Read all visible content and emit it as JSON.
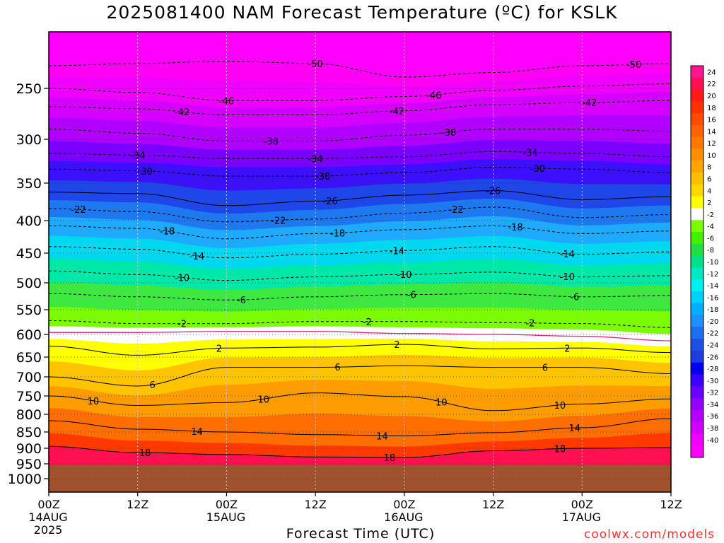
{
  "chart_data": {
    "type": "heatmap",
    "title": "2025081400 NAM Forecast Temperature (ºC) for KSLK",
    "xlabel": "Forecast Time (UTC)",
    "ylabel": "",
    "credit": "coolwx.com/models",
    "x_hours": [
      0,
      12,
      24,
      36,
      48,
      60,
      72,
      84
    ],
    "x_ticks": [
      {
        "hour": 0,
        "lines": [
          "00Z",
          "14AUG",
          "2025"
        ]
      },
      {
        "hour": 12,
        "lines": [
          "12Z"
        ]
      },
      {
        "hour": 24,
        "lines": [
          "00Z",
          "15AUG"
        ]
      },
      {
        "hour": 36,
        "lines": [
          "12Z"
        ]
      },
      {
        "hour": 48,
        "lines": [
          "00Z",
          "16AUG"
        ]
      },
      {
        "hour": 60,
        "lines": [
          "12Z"
        ]
      },
      {
        "hour": 72,
        "lines": [
          "00Z",
          "17AUG"
        ]
      },
      {
        "hour": 84,
        "lines": [
          "12Z"
        ]
      }
    ],
    "y_ticks": [
      250,
      300,
      350,
      400,
      450,
      500,
      550,
      600,
      650,
      700,
      750,
      800,
      850,
      900,
      950,
      1000
    ],
    "ylim": [
      200,
      1040
    ],
    "xlim": [
      0,
      84
    ],
    "ground_pressure": 955,
    "ground_color": "#a0522d",
    "isotherms": [
      {
        "temp": -50,
        "p": [
          230,
          228,
          226,
          228,
          240,
          236,
          230,
          228
        ],
        "dashed": true,
        "labels": [
          {
            "hour": 36,
            "text": "-50"
          },
          {
            "hour": 79,
            "text": "-50"
          }
        ]
      },
      {
        "temp": -46,
        "p": [
          250,
          254,
          262,
          262,
          258,
          252,
          248,
          246
        ],
        "dashed": true,
        "labels": [
          {
            "hour": 24,
            "text": "-46"
          },
          {
            "hour": 52,
            "text": "-46"
          }
        ]
      },
      {
        "temp": -42,
        "p": [
          268,
          270,
          276,
          276,
          272,
          266,
          264,
          262
        ],
        "dashed": true,
        "labels": [
          {
            "hour": 18,
            "text": "-42"
          },
          {
            "hour": 47,
            "text": "-42"
          },
          {
            "hour": 73,
            "text": "-42"
          }
        ]
      },
      {
        "temp": -38,
        "p": [
          290,
          294,
          302,
          302,
          296,
          290,
          290,
          292
        ],
        "dashed": true,
        "labels": [
          {
            "hour": 30,
            "text": "-38"
          },
          {
            "hour": 54,
            "text": "-38"
          }
        ]
      },
      {
        "temp": -34,
        "p": [
          316,
          318,
          322,
          322,
          320,
          314,
          316,
          320
        ],
        "dashed": true,
        "labels": [
          {
            "hour": 12,
            "text": "-34"
          },
          {
            "hour": 36,
            "text": "-34"
          },
          {
            "hour": 65,
            "text": "-34"
          }
        ]
      },
      {
        "temp": -30,
        "p": [
          334,
          336,
          342,
          342,
          338,
          332,
          334,
          338
        ],
        "dashed": true,
        "labels": [
          {
            "hour": 13,
            "text": "-30"
          },
          {
            "hour": 37,
            "text": "-30"
          },
          {
            "hour": 66,
            "text": "-30"
          }
        ]
      },
      {
        "temp": -26,
        "p": [
          362,
          364,
          380,
          374,
          366,
          360,
          372,
          368
        ],
        "dashed": false,
        "labels": [
          {
            "hour": 38,
            "text": "-26"
          },
          {
            "hour": 60,
            "text": "-26"
          }
        ]
      },
      {
        "temp": -22,
        "p": [
          384,
          388,
          402,
          398,
          390,
          382,
          396,
          392
        ],
        "dashed": true,
        "labels": [
          {
            "hour": 4,
            "text": "-22"
          },
          {
            "hour": 31,
            "text": "-22"
          },
          {
            "hour": 55,
            "text": "-22"
          }
        ]
      },
      {
        "temp": -18,
        "p": [
          408,
          412,
          428,
          420,
          414,
          408,
          420,
          416
        ],
        "dashed": true,
        "labels": [
          {
            "hour": 16,
            "text": "-18"
          },
          {
            "hour": 39,
            "text": "-18"
          },
          {
            "hour": 63,
            "text": "-18"
          }
        ]
      },
      {
        "temp": -14,
        "p": [
          440,
          444,
          458,
          452,
          446,
          440,
          452,
          448
        ],
        "dashed": true,
        "labels": [
          {
            "hour": 20,
            "text": "-14"
          },
          {
            "hour": 47,
            "text": "-14"
          },
          {
            "hour": 70,
            "text": "-14"
          }
        ]
      },
      {
        "temp": -10,
        "p": [
          480,
          486,
          496,
          490,
          486,
          482,
          490,
          488
        ],
        "dashed": true,
        "labels": [
          {
            "hour": 18,
            "text": "-10"
          },
          {
            "hour": 48,
            "text": "-10"
          },
          {
            "hour": 70,
            "text": "-10"
          }
        ]
      },
      {
        "temp": -6,
        "p": [
          520,
          526,
          532,
          526,
          522,
          520,
          526,
          524
        ],
        "dashed": true,
        "labels": [
          {
            "hour": 26,
            "text": "-6"
          },
          {
            "hour": 49,
            "text": "-6"
          },
          {
            "hour": 71,
            "text": "-6"
          }
        ]
      },
      {
        "temp": -2,
        "p": [
          572,
          578,
          578,
          574,
          574,
          576,
          578,
          586
        ],
        "dashed": true,
        "labels": [
          {
            "hour": 18,
            "text": "-2"
          },
          {
            "hour": 43,
            "text": "-2"
          },
          {
            "hour": 65,
            "text": "-2"
          }
        ]
      },
      {
        "temp": 0,
        "p": [
          596,
          596,
          594,
          594,
          598,
          600,
          604,
          614
        ],
        "dashed": false,
        "freezing": true,
        "labels": []
      },
      {
        "temp": 2,
        "p": [
          626,
          646,
          630,
          628,
          622,
          632,
          630,
          640
        ],
        "dashed": false,
        "labels": [
          {
            "hour": 23,
            "text": "2"
          },
          {
            "hour": 47,
            "text": "2"
          },
          {
            "hour": 70,
            "text": "2"
          }
        ]
      },
      {
        "temp": 6,
        "p": [
          700,
          724,
          676,
          676,
          672,
          676,
          676,
          692
        ],
        "dashed": false,
        "labels": [
          {
            "hour": 14,
            "text": "6"
          },
          {
            "hour": 39,
            "text": "6"
          },
          {
            "hour": 67,
            "text": "6"
          }
        ]
      },
      {
        "temp": 10,
        "p": [
          750,
          776,
          768,
          742,
          752,
          790,
          772,
          758
        ],
        "dashed": false,
        "labels": [
          {
            "hour": 6,
            "text": "10"
          },
          {
            "hour": 29,
            "text": "10"
          },
          {
            "hour": 53,
            "text": "10"
          },
          {
            "hour": 69,
            "text": "10"
          }
        ]
      },
      {
        "temp": 14,
        "p": [
          818,
          842,
          850,
          858,
          862,
          852,
          838,
          812
        ],
        "dashed": false,
        "labels": [
          {
            "hour": 20,
            "text": "14"
          },
          {
            "hour": 45,
            "text": "14"
          },
          {
            "hour": 71,
            "text": "14"
          }
        ]
      },
      {
        "temp": 18,
        "p": [
          894,
          914,
          920,
          928,
          930,
          908,
          900,
          898
        ],
        "dashed": false,
        "labels": [
          {
            "hour": 13,
            "text": "18"
          },
          {
            "hour": 46,
            "text": "18"
          },
          {
            "hour": 69,
            "text": "18"
          }
        ]
      }
    ],
    "colorbar": {
      "labels": [
        "24",
        "22",
        "20",
        "18",
        "16",
        "14",
        "12",
        "10",
        "8",
        "6",
        "4",
        "2",
        "-2",
        "-4",
        "-6",
        "-8",
        "-10",
        "-12",
        "-14",
        "-16",
        "-18",
        "-20",
        "-22",
        "-24",
        "-26",
        "-28",
        "-30",
        "-32",
        "-34",
        "-36",
        "-38",
        "-40"
      ],
      "colors": [
        "#ff1493",
        "#ff1050",
        "#ff1a1a",
        "#ff3000",
        "#ff4a00",
        "#ff6200",
        "#ff7800",
        "#ff8f00",
        "#ffa500",
        "#ffbe00",
        "#ffd800",
        "#ffff00",
        "#ffffff",
        "#7cfc00",
        "#44ee00",
        "#22dd44",
        "#00e08a",
        "#00e8c4",
        "#00f0f0",
        "#00d0ff",
        "#00b0ff",
        "#1e90ff",
        "#1e6ef0",
        "#1e50e6",
        "#1e3ce0",
        "#0000ee",
        "#3c00ff",
        "#6a00ff",
        "#9400ff",
        "#b400ff",
        "#d000ff",
        "#f000ff",
        "#ff00ff"
      ]
    }
  }
}
